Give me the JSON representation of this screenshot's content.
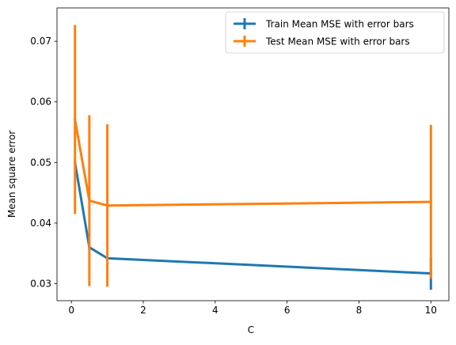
{
  "chart_data": {
    "type": "line",
    "xlabel": "C",
    "ylabel": "Mean square error",
    "xlim": [
      -0.4,
      10.5
    ],
    "ylim": [
      0.0272,
      0.0755
    ],
    "xticks": [
      0,
      2,
      4,
      6,
      8,
      10
    ],
    "xtick_labels": [
      "0",
      "2",
      "4",
      "6",
      "8",
      "10"
    ],
    "yticks": [
      0.03,
      0.04,
      0.05,
      0.06,
      0.07
    ],
    "ytick_labels": [
      "0.03",
      "0.04",
      "0.05",
      "0.06",
      "0.07"
    ],
    "grid": false,
    "legend_position": "upper right",
    "series": [
      {
        "name": "Train Mean MSE with error bars",
        "color": "#1f77b4",
        "x": [
          0.1,
          0.5,
          1,
          10
        ],
        "y": [
          0.05,
          0.036,
          0.0342,
          0.0317
        ],
        "yerr": [
          0.0003,
          0.0003,
          0.0002,
          0.0027
        ]
      },
      {
        "name": "Test Mean MSE with error bars",
        "color": "#ff7f0e",
        "x": [
          0.1,
          0.5,
          1,
          10
        ],
        "y": [
          0.0571,
          0.0437,
          0.0429,
          0.0435
        ],
        "yerr": [
          0.0156,
          0.0141,
          0.0134,
          0.0127
        ]
      }
    ]
  }
}
